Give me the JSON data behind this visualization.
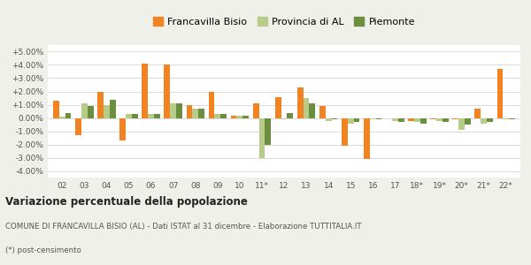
{
  "categories": [
    "02",
    "03",
    "04",
    "05",
    "06",
    "07",
    "08",
    "09",
    "10",
    "11*",
    "12",
    "13",
    "14",
    "15",
    "16",
    "17",
    "18*",
    "19*",
    "20*",
    "21*",
    "22*"
  ],
  "francavilla": [
    1.3,
    -1.3,
    2.0,
    -1.7,
    4.1,
    4.0,
    1.0,
    2.0,
    0.2,
    1.1,
    1.6,
    2.3,
    0.9,
    -2.1,
    -3.1,
    0.0,
    -0.2,
    -0.1,
    -0.1,
    0.7,
    3.7
  ],
  "provincia_al": [
    0.1,
    1.1,
    1.0,
    0.3,
    0.3,
    1.1,
    0.7,
    0.3,
    0.2,
    -3.0,
    -0.1,
    1.5,
    -0.2,
    -0.4,
    -0.1,
    -0.2,
    -0.3,
    -0.2,
    -0.9,
    -0.4,
    -0.1
  ],
  "piemonte": [
    0.4,
    0.9,
    1.4,
    0.3,
    0.3,
    1.1,
    0.7,
    0.3,
    0.2,
    -2.0,
    0.4,
    1.1,
    -0.1,
    -0.3,
    -0.1,
    -0.3,
    -0.4,
    -0.3,
    -0.5,
    -0.3,
    -0.1
  ],
  "francavilla_color": "#f28322",
  "provincia_al_color": "#b8cc8a",
  "piemonte_color": "#6b8f3e",
  "title": "Variazione percentuale della popolazione",
  "subtitle": "COMUNE DI FRANCAVILLA BISIO (AL) - Dati ISTAT al 31 dicembre - Elaborazione TUTTITALIA.IT",
  "footnote": "(*) post-censimento",
  "ylim": [
    -4.5,
    5.5
  ],
  "yticks": [
    -4.0,
    -3.0,
    -2.0,
    -1.0,
    0.0,
    1.0,
    2.0,
    3.0,
    4.0,
    5.0
  ],
  "bg_color": "#f0f0eb",
  "plot_bg_color": "#ffffff"
}
